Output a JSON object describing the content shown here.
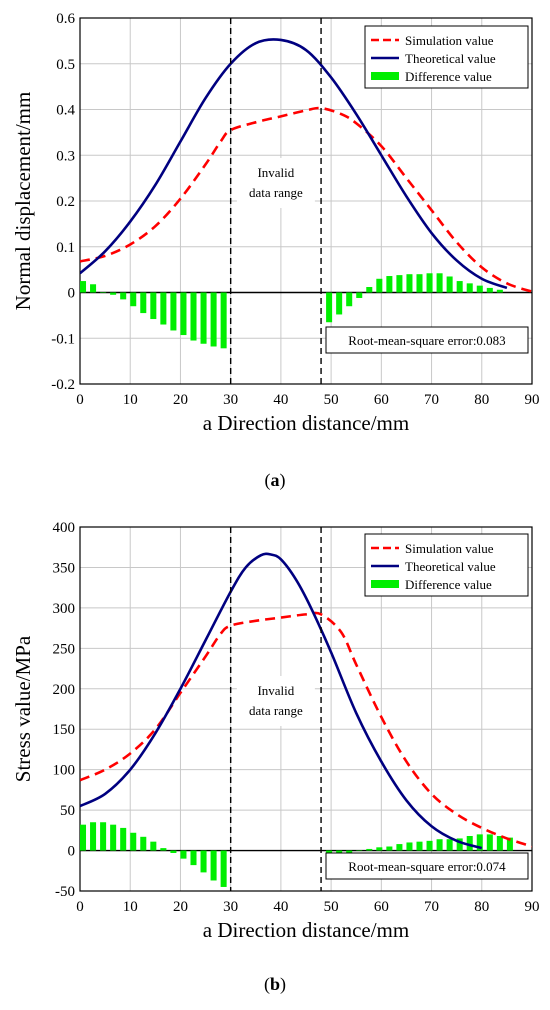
{
  "chart_data": [
    {
      "type": "line",
      "caption_letter": "a",
      "xlabel": "a Direction distance/mm",
      "ylabel": "Normal displacement/mm",
      "xlim": [
        0,
        90
      ],
      "ylim": [
        -0.2,
        0.6
      ],
      "xticks": [
        0,
        10,
        20,
        30,
        40,
        50,
        60,
        70,
        80,
        90
      ],
      "yticks": [
        "-0.2",
        "-0.1",
        "0",
        "0.1",
        "0.2",
        "0.3",
        "0.4",
        "0.5",
        "0.6"
      ],
      "ytick_values": [
        -0.2,
        -0.1,
        0,
        0.1,
        0.2,
        0.3,
        0.4,
        0.5,
        0.6
      ],
      "grid": true,
      "legend_position": "top-right",
      "invalid_range": [
        30,
        48
      ],
      "invalid_label": [
        "Invalid",
        "data range"
      ],
      "annotation": "Root-mean-square error:0.083",
      "series": [
        {
          "name": "Simulation value",
          "style": "dashed",
          "color": "#ff0000",
          "x": [
            0,
            5,
            10,
            15,
            20,
            25,
            28,
            30,
            35,
            40,
            45,
            48,
            52,
            55,
            60,
            65,
            70,
            75,
            80,
            85,
            90
          ],
          "y": [
            0.068,
            0.08,
            0.105,
            0.145,
            0.205,
            0.28,
            0.33,
            0.355,
            0.372,
            0.385,
            0.398,
            0.403,
            0.39,
            0.37,
            0.32,
            0.25,
            0.18,
            0.11,
            0.055,
            0.02,
            0.002
          ]
        },
        {
          "name": "Theoretical value",
          "style": "solid",
          "color": "#000080",
          "x": [
            0,
            5,
            10,
            15,
            20,
            25,
            30,
            35,
            40,
            45,
            50,
            55,
            60,
            65,
            70,
            75,
            80,
            85
          ],
          "y": [
            0.042,
            0.09,
            0.155,
            0.235,
            0.33,
            0.425,
            0.5,
            0.545,
            0.552,
            0.53,
            0.47,
            0.39,
            0.3,
            0.21,
            0.13,
            0.07,
            0.03,
            0.01
          ]
        },
        {
          "name": "Difference value",
          "style": "bar",
          "color": "#00ee00",
          "x": [
            0,
            2,
            4,
            6,
            8,
            10,
            12,
            14,
            16,
            18,
            20,
            22,
            24,
            26,
            28,
            49,
            51,
            53,
            55,
            57,
            59,
            61,
            63,
            65,
            67,
            69,
            71,
            73,
            75,
            77,
            79,
            81,
            83
          ],
          "y": [
            0.025,
            0.018,
            0.0,
            -0.005,
            -0.015,
            -0.03,
            -0.045,
            -0.058,
            -0.07,
            -0.083,
            -0.093,
            -0.105,
            -0.112,
            -0.118,
            -0.122,
            -0.065,
            -0.048,
            -0.03,
            -0.012,
            0.012,
            0.03,
            0.036,
            0.038,
            0.04,
            0.04,
            0.042,
            0.042,
            0.035,
            0.025,
            0.02,
            0.015,
            0.01,
            0.006
          ]
        }
      ]
    },
    {
      "type": "line",
      "caption_letter": "b",
      "xlabel": "a Direction distance/mm",
      "ylabel": "Stress value/MPa",
      "xlim": [
        0,
        90
      ],
      "ylim": [
        -50,
        400
      ],
      "xticks": [
        0,
        10,
        20,
        30,
        40,
        50,
        60,
        70,
        80,
        90
      ],
      "yticks": [
        "-50",
        "0",
        "50",
        "100",
        "150",
        "200",
        "250",
        "300",
        "350",
        "400"
      ],
      "ytick_values": [
        -50,
        0,
        50,
        100,
        150,
        200,
        250,
        300,
        350,
        400
      ],
      "grid": true,
      "legend_position": "top-right",
      "invalid_range": [
        30,
        48
      ],
      "invalid_label": [
        "Invalid",
        "data range"
      ],
      "annotation": "Root-mean-square error:0.074",
      "series": [
        {
          "name": "Simulation value",
          "style": "dashed",
          "color": "#ff0000",
          "x": [
            0,
            5,
            10,
            15,
            20,
            25,
            28,
            30,
            35,
            40,
            45,
            48,
            52,
            55,
            60,
            65,
            70,
            75,
            80,
            85,
            90
          ],
          "y": [
            87,
            100,
            120,
            150,
            195,
            240,
            268,
            278,
            284,
            288,
            292,
            292,
            270,
            230,
            165,
            110,
            70,
            45,
            28,
            15,
            5
          ]
        },
        {
          "name": "Theoretical value",
          "style": "solid",
          "color": "#000080",
          "x": [
            0,
            5,
            10,
            15,
            20,
            25,
            30,
            33,
            36,
            38,
            40,
            43,
            46,
            50,
            55,
            60,
            65,
            70,
            75,
            80
          ],
          "y": [
            55,
            70,
            100,
            145,
            200,
            260,
            320,
            350,
            365,
            366,
            360,
            335,
            300,
            245,
            170,
            110,
            62,
            30,
            12,
            3
          ]
        },
        {
          "name": "Difference value",
          "style": "bar",
          "color": "#00ee00",
          "x": [
            0,
            2,
            4,
            6,
            8,
            10,
            12,
            14,
            16,
            18,
            20,
            22,
            24,
            26,
            28,
            49,
            51,
            53,
            55,
            57,
            59,
            61,
            63,
            65,
            67,
            69,
            71,
            73,
            75,
            77,
            79,
            81,
            83,
            85
          ],
          "y": [
            32,
            35,
            35,
            32,
            28,
            22,
            17,
            11,
            3,
            -3,
            -10,
            -18,
            -27,
            -37,
            -45,
            -8,
            -6,
            -3,
            0,
            2,
            4,
            5,
            8,
            10,
            11,
            12,
            14,
            14,
            15,
            18,
            20,
            20,
            18,
            16
          ]
        }
      ]
    }
  ]
}
